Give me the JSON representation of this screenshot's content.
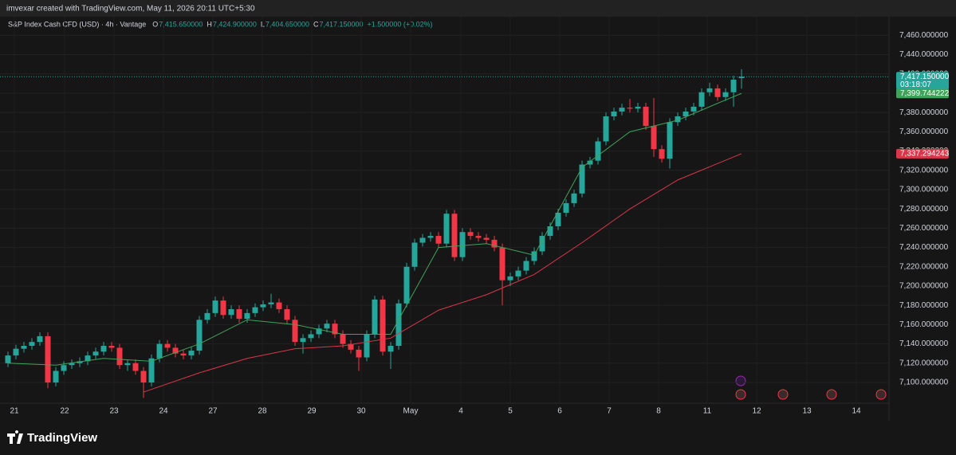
{
  "attribution": "imvexar created with TradingView.com, May 11, 2026 20:11 UTC+5:30",
  "chart_data": {
    "type": "candlestick",
    "title": "S&P Index Cash CFD (USD) · 4h · Vantage",
    "readout": [
      {
        "key": "O",
        "value": "7,415.650000"
      },
      {
        "key": "H",
        "value": "7,424.900000"
      },
      {
        "key": "L",
        "value": "7,404.650000"
      },
      {
        "key": "C",
        "value": "7,417.150000"
      }
    ],
    "change": "+1.500000 (+0.02%)",
    "up_color": "#26a69a",
    "down_color": "#f23645",
    "open": [
      7120,
      7128,
      7135,
      7138,
      7142,
      7148,
      7100,
      7112,
      7118,
      7120,
      7122,
      7128,
      7132,
      7138,
      7136,
      7118,
      7120,
      7112,
      7100,
      7125,
      7140,
      7136,
      7130,
      7128,
      7133,
      7165,
      7172,
      7185,
      7170,
      7176,
      7166,
      7172,
      7178,
      7181,
      7183,
      7176,
      7165,
      7142,
      7146,
      7150,
      7156,
      7161,
      7150,
      7140,
      7134,
      7126,
      7150,
      7186,
      7132,
      7138,
      7182,
      7220,
      7245,
      7250,
      7252,
      7244,
      7275,
      7230,
      7256,
      7252,
      7250,
      7248,
      7240,
      7206,
      7210,
      7216,
      7226,
      7236,
      7252,
      7262,
      7276,
      7286,
      7296,
      7326,
      7330,
      7350,
      7376,
      7381,
      7385,
      7384,
      7386,
      7366,
      7342,
      7332,
      7370,
      7376,
      7381,
      7386,
      7401,
      7405,
      7396,
      7401,
      7415.65
    ],
    "high": [
      7132,
      7139,
      7142,
      7146,
      7152,
      7152,
      7116,
      7122,
      7124,
      7126,
      7132,
      7136,
      7142,
      7142,
      7140,
      7124,
      7124,
      7116,
      7129,
      7144,
      7144,
      7140,
      7134,
      7137,
      7169,
      7176,
      7189,
      7189,
      7180,
      7180,
      7176,
      7182,
      7185,
      7192,
      7187,
      7180,
      7169,
      7150,
      7154,
      7160,
      7165,
      7165,
      7154,
      7144,
      7138,
      7154,
      7190,
      7190,
      7142,
      7186,
      7224,
      7249,
      7254,
      7256,
      7256,
      7279,
      7279,
      7260,
      7260,
      7256,
      7254,
      7252,
      7244,
      7214,
      7220,
      7230,
      7240,
      7256,
      7266,
      7280,
      7290,
      7300,
      7330,
      7334,
      7354,
      7380,
      7385,
      7389,
      7394,
      7390,
      7390,
      7395,
      7346,
      7374,
      7380,
      7385,
      7390,
      7405,
      7411,
      7409,
      7405,
      7418,
      7424.9
    ],
    "low": [
      7116,
      7124,
      7131,
      7134,
      7138,
      7094,
      7096,
      7108,
      7114,
      7116,
      7118,
      7124,
      7128,
      7132,
      7114,
      7112,
      7108,
      7084,
      7096,
      7121,
      7132,
      7126,
      7124,
      7124,
      7129,
      7161,
      7168,
      7166,
      7166,
      7162,
      7162,
      7168,
      7174,
      7177,
      7172,
      7161,
      7138,
      7130,
      7142,
      7146,
      7152,
      7146,
      7136,
      7130,
      7112,
      7122,
      7146,
      7128,
      7114,
      7134,
      7178,
      7216,
      7241,
      7246,
      7240,
      7240,
      7226,
      7226,
      7248,
      7246,
      7244,
      7236,
      7180,
      7200,
      7206,
      7212,
      7222,
      7232,
      7248,
      7258,
      7272,
      7282,
      7292,
      7322,
      7326,
      7346,
      7372,
      7377,
      7380,
      7380,
      7362,
      7334,
      7328,
      7322,
      7366,
      7372,
      7377,
      7382,
      7397,
      7392,
      7392,
      7386,
      7404.65
    ],
    "close": [
      7128,
      7135,
      7138,
      7142,
      7148,
      7100,
      7112,
      7118,
      7120,
      7122,
      7128,
      7132,
      7138,
      7136,
      7118,
      7120,
      7112,
      7100,
      7125,
      7140,
      7136,
      7130,
      7128,
      7133,
      7165,
      7172,
      7185,
      7170,
      7176,
      7166,
      7172,
      7178,
      7181,
      7183,
      7176,
      7165,
      7142,
      7146,
      7150,
      7156,
      7161,
      7150,
      7140,
      7134,
      7126,
      7150,
      7186,
      7132,
      7138,
      7182,
      7220,
      7245,
      7250,
      7252,
      7244,
      7275,
      7230,
      7256,
      7252,
      7250,
      7248,
      7240,
      7206,
      7210,
      7216,
      7226,
      7236,
      7252,
      7262,
      7276,
      7286,
      7296,
      7326,
      7330,
      7350,
      7376,
      7381,
      7385,
      7384,
      7386,
      7366,
      7342,
      7332,
      7370,
      7376,
      7381,
      7386,
      7401,
      7405,
      7396,
      7401,
      7414,
      7417.15
    ],
    "moving_averages": [
      {
        "color": "#3fa35a",
        "x": [
          0,
          6,
          12,
          18,
          24,
          30,
          36,
          42,
          48,
          54,
          60,
          66,
          72,
          78,
          84,
          90,
          92
        ],
        "values": [
          7120,
          7118,
          7125,
          7122,
          7140,
          7165,
          7160,
          7150,
          7150,
          7240,
          7244,
          7232,
          7323,
          7360,
          7372,
          7393,
          7399.744222
        ]
      },
      {
        "color": "#d9364a",
        "x": [
          17,
          24,
          30,
          36,
          42,
          48,
          54,
          60,
          66,
          72,
          78,
          84,
          92
        ],
        "values": [
          7090,
          7110,
          7125,
          7135,
          7138,
          7146,
          7175,
          7191,
          7212,
          7245,
          7280,
          7310,
          7337.294243
        ]
      }
    ],
    "price_labels": [
      {
        "value": 7417.15,
        "label": "7,417.150000",
        "sublabel": "03:18:07",
        "color": "#26a69a"
      },
      {
        "value": 7399.744222,
        "label": "7,399.744222",
        "color": "#3fa35a"
      },
      {
        "value": 7337.294243,
        "label": "7,337.294243",
        "color": "#d9364a"
      }
    ],
    "xlim": [
      -1,
      110.5
    ],
    "xticks": [
      {
        "value": 0.8,
        "label": "21"
      },
      {
        "value": 7.1,
        "label": "22"
      },
      {
        "value": 13.3,
        "label": "23"
      },
      {
        "value": 19.5,
        "label": "24"
      },
      {
        "value": 25.7,
        "label": "27"
      },
      {
        "value": 31.9,
        "label": "28"
      },
      {
        "value": 38.1,
        "label": "29"
      },
      {
        "value": 44.3,
        "label": "30"
      },
      {
        "value": 50.5,
        "label": "May"
      },
      {
        "value": 56.8,
        "label": "4"
      },
      {
        "value": 63,
        "label": "5"
      },
      {
        "value": 69.2,
        "label": "6"
      },
      {
        "value": 75.4,
        "label": "7"
      },
      {
        "value": 81.6,
        "label": "8"
      },
      {
        "value": 87.7,
        "label": "11"
      },
      {
        "value": 93.9,
        "label": "12"
      },
      {
        "value": 100.2,
        "label": "13"
      },
      {
        "value": 106.4,
        "label": "14"
      }
    ],
    "ylim": [
      7078.5,
      7479.3
    ],
    "yticks": [
      {
        "value": 7100,
        "label": "7,100.000000"
      },
      {
        "value": 7120,
        "label": "7,120.000000"
      },
      {
        "value": 7140,
        "label": "7,140.000000"
      },
      {
        "value": 7160,
        "label": "7,160.000000"
      },
      {
        "value": 7180,
        "label": "7,180.000000"
      },
      {
        "value": 7200,
        "label": "7,200.000000"
      },
      {
        "value": 7220,
        "label": "7,220.000000"
      },
      {
        "value": 7240,
        "label": "7,240.000000"
      },
      {
        "value": 7260,
        "label": "7,260.000000"
      },
      {
        "value": 7280,
        "label": "7,280.000000"
      },
      {
        "value": 7300,
        "label": "7,300.000000"
      },
      {
        "value": 7320,
        "label": "7,320.000000"
      },
      {
        "value": 7340,
        "label": "7,340.000000"
      },
      {
        "value": 7360,
        "label": "7,360.000000"
      },
      {
        "value": 7380,
        "label": "7,380.000000"
      },
      {
        "value": 7400,
        "label": "7,400.000000"
      },
      {
        "value": 7420,
        "label": "7,420.000000"
      },
      {
        "value": 7440,
        "label": "7,440.000000"
      },
      {
        "value": 7460,
        "label": "7,460.000000"
      }
    ],
    "grid": true
  },
  "footer": {
    "logo": "TradingView"
  }
}
